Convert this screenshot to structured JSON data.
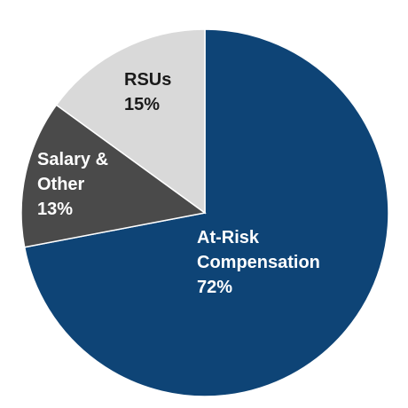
{
  "chart_data": {
    "type": "pie",
    "categories": [
      "At-Risk Compensation",
      "Salary & Other",
      "RSUs"
    ],
    "values": [
      72,
      13,
      15
    ],
    "value_labels": [
      "72%",
      "13%",
      "15%"
    ],
    "colors": [
      "#0e4476",
      "#4a4a4a",
      "#d9d9d9"
    ],
    "label_colors": [
      "#ffffff",
      "#ffffff",
      "#1a1a1a"
    ]
  }
}
